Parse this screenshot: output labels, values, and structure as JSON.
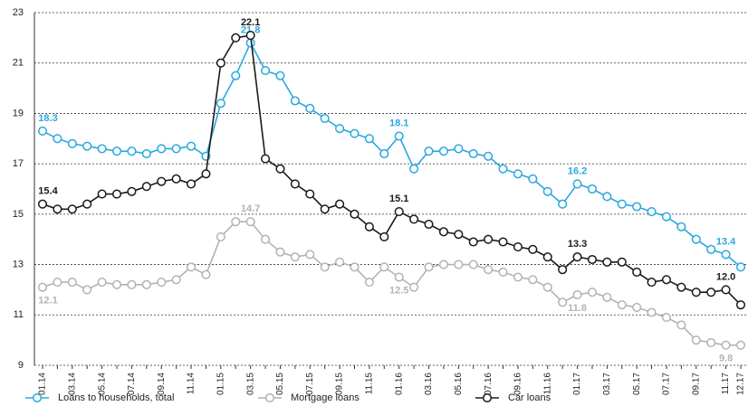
{
  "chart_data": {
    "type": "line",
    "categories": [
      "01.14",
      null,
      "03.14",
      null,
      "05.14",
      null,
      "07.14",
      null,
      "09.14",
      null,
      "11.14",
      null,
      "01.15",
      null,
      "03.15",
      null,
      "05.15",
      null,
      "07.15",
      null,
      "09.15",
      null,
      "11.15",
      null,
      "01.16",
      null,
      "03.16",
      null,
      "05.16",
      null,
      "07.16",
      null,
      "09.16",
      null,
      "11.16",
      null,
      "01.17",
      null,
      "03.17",
      null,
      "05.17",
      null,
      "07.17",
      null,
      "09.17",
      null,
      "11.17",
      "12.17"
    ],
    "series": [
      {
        "name": "Loans to households, total",
        "color": "#29a8e0",
        "values": [
          18.3,
          18.0,
          17.8,
          17.7,
          17.6,
          17.5,
          17.5,
          17.4,
          17.6,
          17.6,
          17.7,
          17.3,
          19.4,
          20.5,
          21.8,
          20.7,
          20.5,
          19.5,
          19.2,
          18.8,
          18.4,
          18.2,
          18.0,
          17.4,
          18.1,
          16.8,
          17.5,
          17.5,
          17.6,
          17.4,
          17.3,
          16.8,
          16.6,
          16.4,
          15.9,
          15.4,
          16.2,
          16.0,
          15.7,
          15.4,
          15.3,
          15.1,
          14.9,
          14.5,
          14.0,
          13.6,
          13.4,
          12.9
        ],
        "value_labels": [
          "18.3",
          null,
          null,
          null,
          null,
          null,
          null,
          null,
          null,
          null,
          null,
          null,
          null,
          null,
          "21.8",
          null,
          null,
          null,
          null,
          null,
          null,
          null,
          null,
          null,
          "18.1",
          null,
          null,
          null,
          null,
          null,
          null,
          null,
          null,
          null,
          null,
          null,
          "16.2",
          null,
          null,
          null,
          null,
          null,
          null,
          null,
          null,
          null,
          "13.4",
          null
        ]
      },
      {
        "name": "Mortgage loans",
        "color": "#b3b3b3",
        "values": [
          12.1,
          12.3,
          12.3,
          12.0,
          12.3,
          12.2,
          12.2,
          12.2,
          12.3,
          12.4,
          12.9,
          12.6,
          14.1,
          14.7,
          14.7,
          14.0,
          13.5,
          13.3,
          13.4,
          12.9,
          13.1,
          12.9,
          12.3,
          12.9,
          12.5,
          12.1,
          12.9,
          13.0,
          13.0,
          13.0,
          12.8,
          12.7,
          12.5,
          12.4,
          12.1,
          11.5,
          11.8,
          11.9,
          11.7,
          11.4,
          11.3,
          11.1,
          10.9,
          10.6,
          10.0,
          9.9,
          9.8,
          9.8
        ],
        "value_labels": [
          "12.1",
          null,
          null,
          null,
          null,
          null,
          null,
          null,
          null,
          null,
          null,
          null,
          null,
          null,
          "14.7",
          null,
          null,
          null,
          null,
          null,
          null,
          null,
          null,
          null,
          "12.5",
          null,
          null,
          null,
          null,
          null,
          null,
          null,
          null,
          null,
          null,
          null,
          "11.8",
          null,
          null,
          null,
          null,
          null,
          null,
          null,
          null,
          null,
          "9.8",
          null
        ]
      },
      {
        "name": "Car loans",
        "color": "#1a1a1a",
        "values": [
          15.4,
          15.2,
          15.2,
          15.4,
          15.8,
          15.8,
          15.9,
          16.1,
          16.3,
          16.4,
          16.2,
          16.6,
          21.0,
          22.0,
          22.1,
          17.2,
          16.8,
          16.2,
          15.8,
          15.2,
          15.4,
          15.0,
          14.5,
          14.1,
          15.1,
          14.8,
          14.6,
          14.3,
          14.2,
          13.9,
          14.0,
          13.9,
          13.7,
          13.6,
          13.3,
          12.8,
          13.3,
          13.2,
          13.1,
          13.1,
          12.7,
          12.3,
          12.4,
          12.1,
          11.9,
          11.9,
          12.0,
          11.4
        ],
        "value_labels": [
          "15.4",
          null,
          null,
          null,
          null,
          null,
          null,
          null,
          null,
          null,
          null,
          null,
          null,
          null,
          "22.1",
          null,
          null,
          null,
          null,
          null,
          null,
          null,
          null,
          null,
          "15.1",
          null,
          null,
          null,
          null,
          null,
          null,
          null,
          null,
          null,
          null,
          null,
          "13.3",
          null,
          null,
          null,
          null,
          null,
          null,
          null,
          null,
          null,
          "12.0",
          null
        ]
      }
    ],
    "ylim": [
      9,
      23
    ],
    "yticks": [
      9,
      11,
      13,
      15,
      17,
      19,
      21,
      23
    ],
    "grid": true,
    "legend": "bottom"
  }
}
